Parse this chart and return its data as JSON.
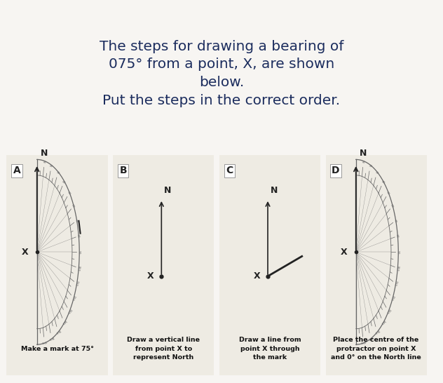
{
  "title_line1": "The steps for drawing a bearing of",
  "title_line2": "075° from a point, X, are shown",
  "title_line3": "below.",
  "title_line4": "Put the steps in the correct order.",
  "title_color": "#1c2d5e",
  "bg_color": "#f7f5f2",
  "card_bg": "#eeebe3",
  "card_labels": [
    "A",
    "B",
    "C",
    "D"
  ],
  "card_captions": [
    "Make a mark at 75°",
    "Draw a vertical line\nfrom point X to\nrepresent North",
    "Draw a line from\npoint X through\nthe mark",
    "Place the centre of the\nprotractor on point X\nand 0° on the North line"
  ],
  "card_has_protractor": [
    true,
    false,
    false,
    true
  ],
  "card_has_mark": [
    true,
    false,
    false,
    false
  ],
  "card_has_bearing_line": [
    false,
    false,
    true,
    false
  ],
  "protractor_color": "#666666",
  "line_color": "#222222"
}
